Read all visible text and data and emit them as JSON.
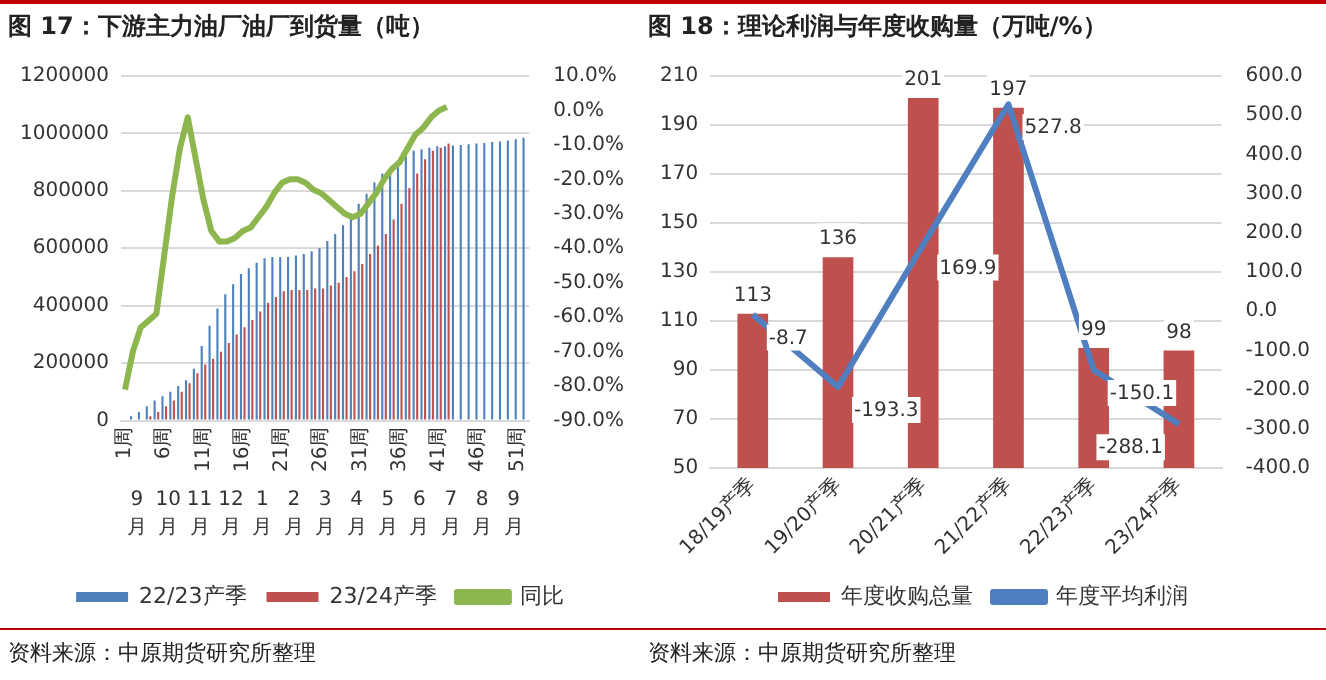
{
  "chart_data": [
    {
      "type": "bar",
      "title": "图 17：下游主力油厂油厂到货量（吨）",
      "categories": [
        "1周",
        null,
        null,
        null,
        null,
        "6周",
        null,
        null,
        null,
        null,
        "11周",
        null,
        null,
        null,
        null,
        "16周",
        null,
        null,
        null,
        null,
        "21周",
        null,
        null,
        null,
        null,
        "26周",
        null,
        null,
        null,
        null,
        "31周",
        null,
        null,
        null,
        null,
        "36周",
        null,
        null,
        null,
        null,
        "41周",
        null,
        null,
        null,
        null,
        "46周",
        null,
        null,
        null,
        null,
        "51周",
        null
      ],
      "series": [
        {
          "name": "22/23产季",
          "color": "#4f81bd",
          "values": [
            null,
            15000,
            30000,
            50000,
            70000,
            85000,
            100000,
            120000,
            140000,
            180000,
            260000,
            330000,
            390000,
            440000,
            475000,
            510000,
            530000,
            550000,
            565000,
            570000,
            570000,
            570000,
            575000,
            580000,
            590000,
            600000,
            625000,
            650000,
            680000,
            720000,
            755000,
            790000,
            830000,
            860000,
            880000,
            905000,
            930000,
            940000,
            945000,
            950000,
            955000,
            955000,
            958000,
            960000,
            962000,
            965000,
            967000,
            970000,
            972000,
            975000,
            980000,
            985000
          ]
        },
        {
          "name": "23/24产季",
          "color": "#c0504d",
          "values": [
            null,
            null,
            null,
            15000,
            30000,
            50000,
            70000,
            100000,
            130000,
            165000,
            195000,
            215000,
            240000,
            270000,
            300000,
            325000,
            350000,
            380000,
            410000,
            430000,
            450000,
            455000,
            455000,
            455000,
            460000,
            460000,
            470000,
            480000,
            500000,
            520000,
            545000,
            580000,
            610000,
            650000,
            700000,
            755000,
            810000,
            860000,
            910000,
            940000,
            950000,
            965000,
            null,
            null,
            null,
            null,
            null,
            null,
            null,
            null,
            null,
            null
          ]
        },
        {
          "name": "同比",
          "type": "line",
          "axis": "y2",
          "color": "#8db64f",
          "values": [
            -81,
            -70,
            -63,
            -61,
            -59,
            -42,
            -25,
            -11,
            -2,
            -14,
            -26,
            -35,
            -38,
            -38,
            -37,
            -35,
            -34,
            -31,
            -28,
            -24,
            -21,
            -20,
            -20,
            -21,
            -23,
            -24,
            -26,
            -28,
            -30,
            -31,
            -30,
            -27,
            -24,
            -20,
            -17,
            -15,
            -11,
            -7,
            -5,
            -2,
            0,
            1,
            null,
            null,
            null,
            null,
            null,
            null,
            null,
            null,
            null,
            null
          ]
        }
      ],
      "ylim": [
        0,
        1200000
      ],
      "yticks": [
        0,
        200000,
        400000,
        600000,
        800000,
        1000000,
        1200000
      ],
      "y2lim": [
        -90,
        10
      ],
      "y2ticks": [
        {
          "value": -90,
          "label": "-90.0%"
        },
        {
          "value": -80,
          "label": "-80.0%"
        },
        {
          "value": -70,
          "label": "-70.0%"
        },
        {
          "value": -60,
          "label": "-60.0%"
        },
        {
          "value": -50,
          "label": "-50.0%"
        },
        {
          "value": -40,
          "label": "-40.0%"
        },
        {
          "value": -30,
          "label": "-30.0%"
        },
        {
          "value": -20,
          "label": "-20.0%"
        },
        {
          "value": -10,
          "label": "-10.0%"
        },
        {
          "value": 0,
          "label": "0.0%"
        },
        {
          "value": 10,
          "label": "10.0%"
        }
      ],
      "grid": "y",
      "legend": "bottom",
      "annotations": [
        "9月",
        "10月",
        "11月",
        "12月",
        "1月",
        "2月",
        "3月",
        "4月",
        "5月",
        "6月",
        "7月",
        "8月",
        "9月",
        "资料来源：中原期货研究所整理"
      ]
    },
    {
      "type": "bar",
      "title": "图 18：理论利润与年度收购量（万吨/%）",
      "categories": [
        "18/19产季",
        "19/20产季",
        "20/21产季",
        "21/22产季",
        "22/23产季",
        "23/24产季"
      ],
      "series": [
        {
          "name": "年度收购总量",
          "color": "#c0504d",
          "values": [
            113,
            136,
            201,
            197,
            99,
            98
          ]
        },
        {
          "name": "年度平均利润",
          "type": "line",
          "axis": "y2",
          "color": "#4f7fc0",
          "values": [
            -8.7,
            -193.3,
            169.9,
            527.8,
            -150.1,
            -288.1
          ]
        }
      ],
      "ylim": [
        50,
        210
      ],
      "yticks": [
        50,
        70,
        90,
        110,
        130,
        150,
        170,
        190,
        210
      ],
      "y2lim": [
        -400,
        600
      ],
      "y2ticks": [
        {
          "value": -400,
          "label": "-400.0"
        },
        {
          "value": -300,
          "label": "-300.0"
        },
        {
          "value": -200,
          "label": "-200.0"
        },
        {
          "value": -100,
          "label": "-100.0"
        },
        {
          "value": 0,
          "label": "0.0"
        },
        {
          "value": 100,
          "label": "100.0"
        },
        {
          "value": 200,
          "label": "200.0"
        },
        {
          "value": 300,
          "label": "300.0"
        },
        {
          "value": 400,
          "label": "400.0"
        },
        {
          "value": 500,
          "label": "500.0"
        },
        {
          "value": 600,
          "label": "600.0"
        }
      ],
      "grid": "y",
      "legend": "bottom",
      "data_labels": true,
      "annotations": [
        "资料来源：中原期货研究所整理"
      ]
    }
  ]
}
